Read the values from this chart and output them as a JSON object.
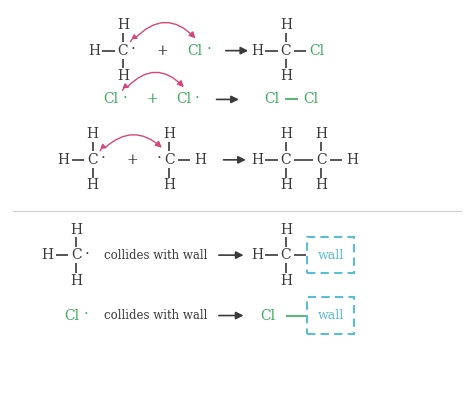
{
  "bg_color": "#ffffff",
  "black": "#3a3a3a",
  "green": "#3aaa5c",
  "pink": "#d4477a",
  "blue": "#5bbcd6",
  "figsize": [
    4.74,
    4.08
  ],
  "dpi": 100,
  "xlim": [
    0,
    10
  ],
  "ylim": [
    0,
    8.6
  ],
  "fs": 10,
  "fs_small": 8.5
}
